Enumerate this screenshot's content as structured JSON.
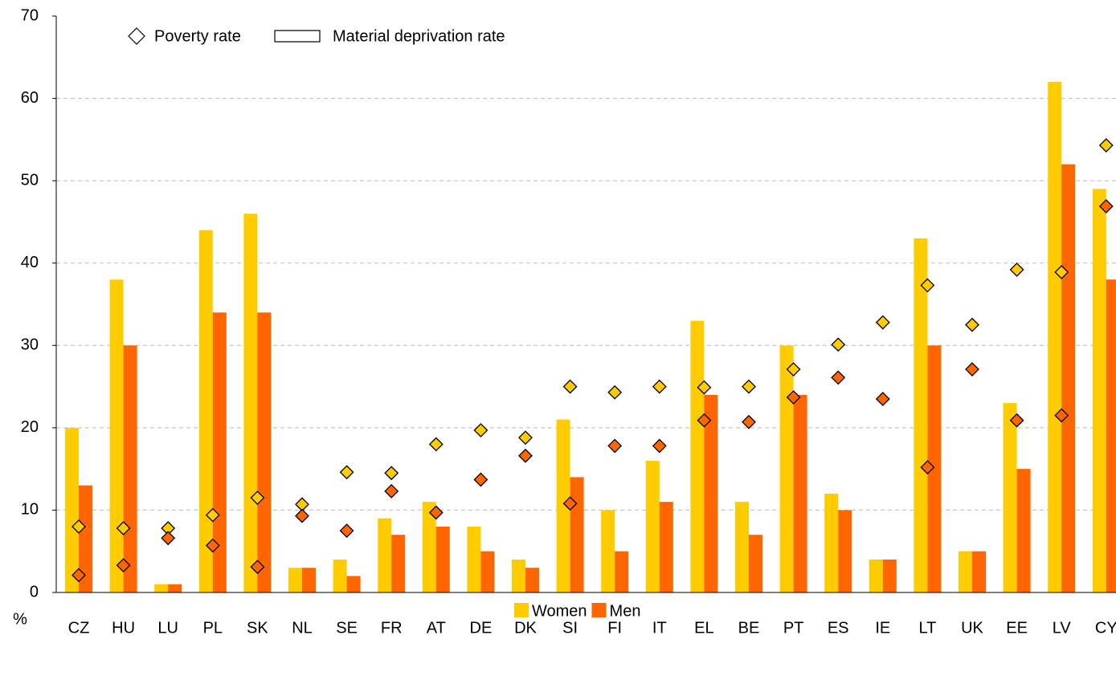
{
  "chart_data": {
    "type": "bar",
    "y_axis_label": "%",
    "marker_legend": {
      "poverty": "Poverty rate",
      "bars": "Material deprivation rate"
    },
    "categories": [
      "CZ",
      "HU",
      "LU",
      "PL",
      "SK",
      "NL",
      "SE",
      "FR",
      "AT",
      "DE",
      "DK",
      "SI",
      "FI",
      "IT",
      "EL",
      "BE",
      "PT",
      "ES",
      "IE",
      "LT",
      "UK",
      "EE",
      "LV",
      "CY"
    ],
    "series": [
      {
        "name": "Women",
        "color": "#ffcc00",
        "values": [
          20,
          38,
          1,
          44,
          46,
          3,
          4,
          9,
          11,
          8,
          4,
          21,
          10,
          16,
          33,
          11,
          30,
          12,
          4,
          43,
          5,
          23,
          62,
          49
        ],
        "poverty_rate": [
          8.0,
          7.8,
          7.8,
          9.4,
          11.5,
          10.7,
          14.6,
          14.5,
          18.0,
          19.7,
          18.8,
          25.0,
          24.3,
          25.0,
          24.9,
          25.0,
          27.1,
          30.1,
          32.8,
          37.3,
          32.5,
          39.2,
          38.9,
          54.3
        ]
      },
      {
        "name": "Men",
        "color": "#ff6600",
        "values": [
          13,
          30,
          1,
          34,
          34,
          3,
          2,
          7,
          8,
          5,
          3,
          14,
          5,
          11,
          24,
          7,
          24,
          10,
          4,
          30,
          5,
          15,
          52,
          38
        ],
        "poverty_rate": [
          2.1,
          3.3,
          6.6,
          5.7,
          3.1,
          9.3,
          7.5,
          12.3,
          9.7,
          13.7,
          16.6,
          10.8,
          17.8,
          17.8,
          20.9,
          20.7,
          23.7,
          26.1,
          23.5,
          15.2,
          27.1,
          20.9,
          21.5,
          46.9
        ]
      }
    ],
    "ylim": [
      0,
      70
    ],
    "yticks": [
      0,
      10,
      20,
      30,
      40,
      50,
      60,
      70
    ],
    "grid": true
  }
}
